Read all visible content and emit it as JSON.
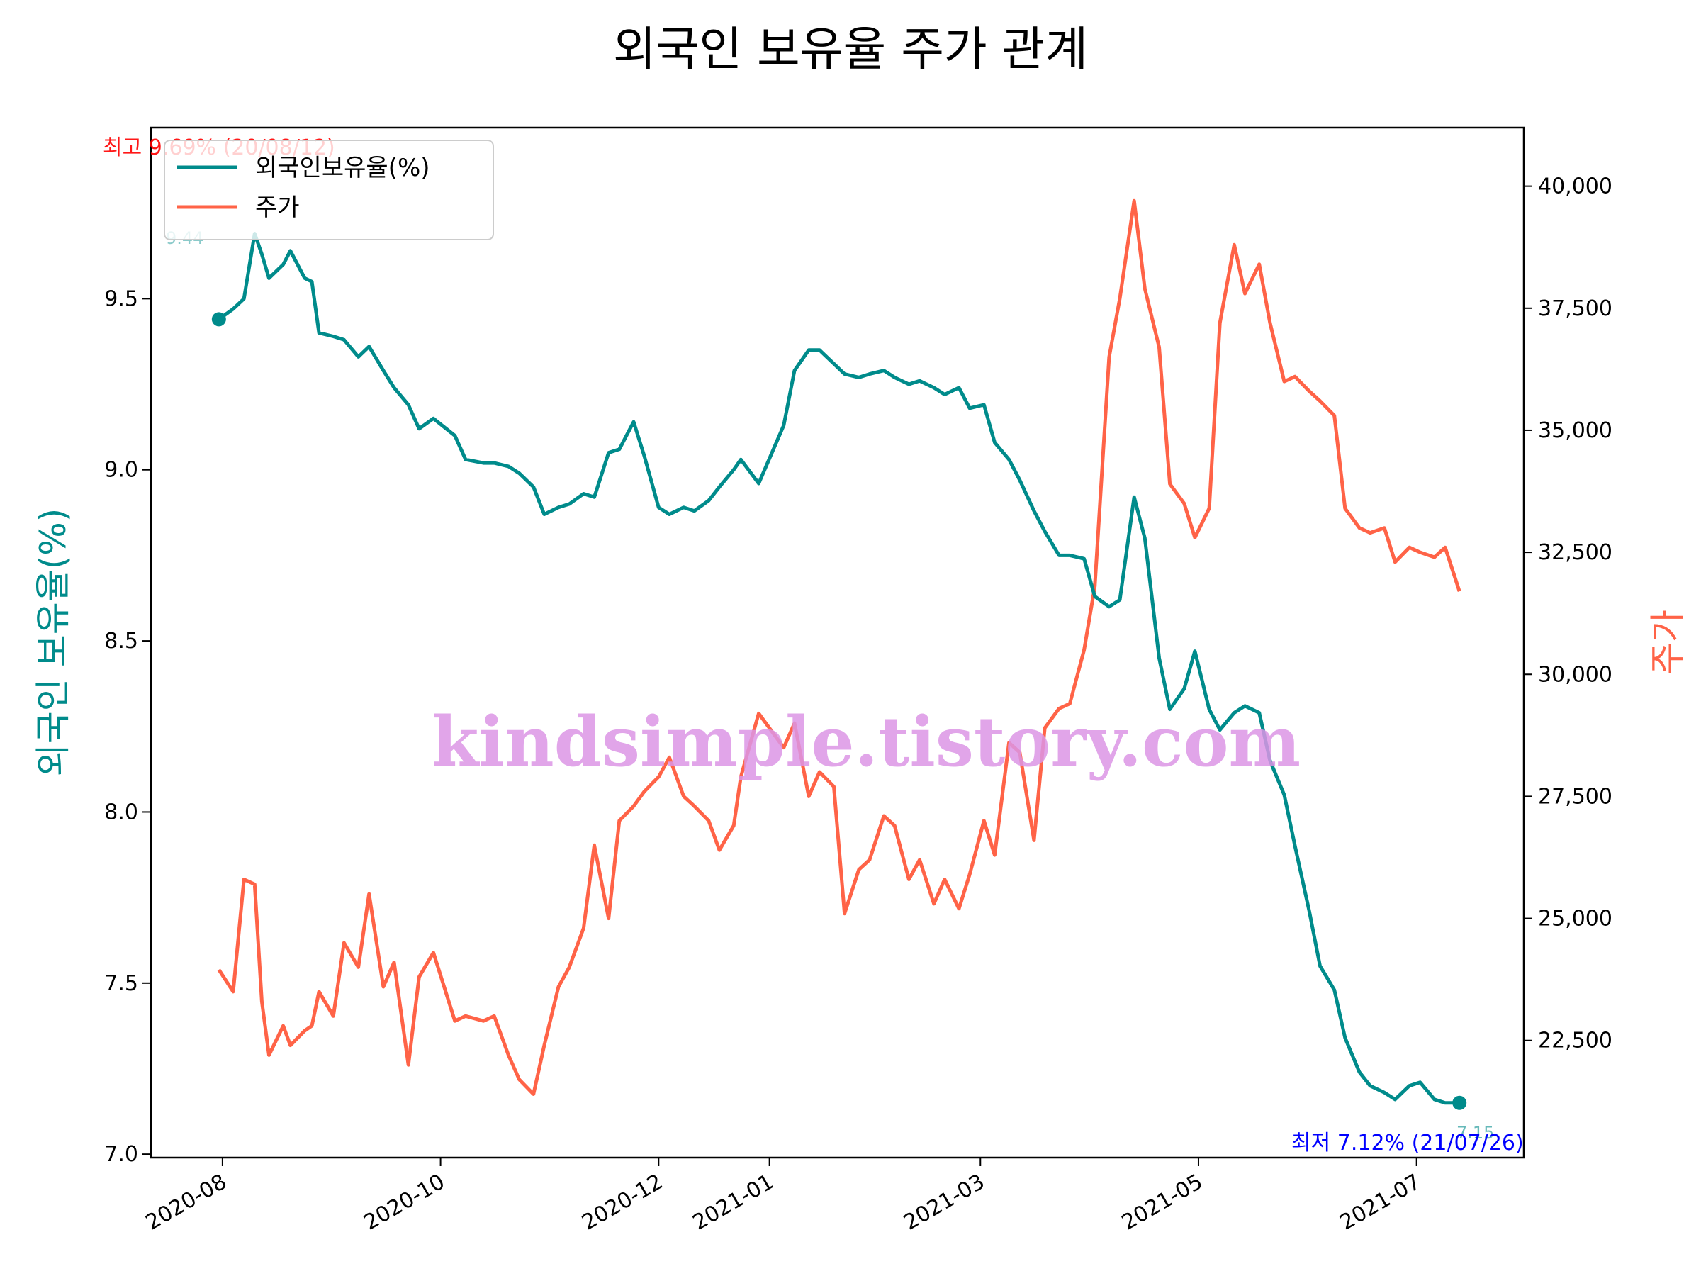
{
  "chart_data": {
    "type": "line",
    "title": "외국인 보유율 주가 관계",
    "ylabel_left": "외국인 보유율(%)",
    "ylabel_right": "주가",
    "x_ticks": [
      "2020-08",
      "2020-10",
      "2020-12",
      "2021-01",
      "2021-03",
      "2021-05",
      "2021-07"
    ],
    "y_left_ticks": [
      "7.0",
      "7.5",
      "8.0",
      "8.5",
      "9.0",
      "9.5"
    ],
    "y_right_ticks": [
      "22,500",
      "25,000",
      "27,500",
      "30,000",
      "32,500",
      "35,000",
      "37,500",
      "40,000"
    ],
    "ylim_left": [
      6.99,
      10.0
    ],
    "ylim_right": [
      20100,
      41200
    ],
    "xlim": [
      "2020-07-12",
      "2021-07-31"
    ],
    "legend_position": "upper-left",
    "grid": false,
    "colors": {
      "foreign_ratio": "#008b8b",
      "price": "#ff6347",
      "max_annot": "#ff0000",
      "min_annot": "#0000ff"
    },
    "series": [
      {
        "name": "외국인보유율(%)",
        "axis": "left",
        "x": [
          "2020-07-31",
          "2020-08-04",
          "2020-08-07",
          "2020-08-10",
          "2020-08-12",
          "2020-08-14",
          "2020-08-18",
          "2020-08-20",
          "2020-08-24",
          "2020-08-26",
          "2020-08-28",
          "2020-09-01",
          "2020-09-04",
          "2020-09-08",
          "2020-09-11",
          "2020-09-15",
          "2020-09-18",
          "2020-09-22",
          "2020-09-25",
          "2020-09-29",
          "2020-10-05",
          "2020-10-08",
          "2020-10-13",
          "2020-10-16",
          "2020-10-20",
          "2020-10-23",
          "2020-10-27",
          "2020-10-30",
          "2020-11-03",
          "2020-11-06",
          "2020-11-10",
          "2020-11-13",
          "2020-11-17",
          "2020-11-20",
          "2020-11-24",
          "2020-11-27",
          "2020-12-01",
          "2020-12-04",
          "2020-12-08",
          "2020-12-11",
          "2020-12-15",
          "2020-12-18",
          "2020-12-22",
          "2020-12-24",
          "2020-12-29",
          "2021-01-05",
          "2021-01-08",
          "2021-01-12",
          "2021-01-15",
          "2021-01-19",
          "2021-01-22",
          "2021-01-26",
          "2021-01-29",
          "2021-02-02",
          "2021-02-05",
          "2021-02-09",
          "2021-02-12",
          "2021-02-16",
          "2021-02-19",
          "2021-02-23",
          "2021-02-26",
          "2021-03-02",
          "2021-03-05",
          "2021-03-09",
          "2021-03-12",
          "2021-03-16",
          "2021-03-19",
          "2021-03-23",
          "2021-03-26",
          "2021-03-30",
          "2021-04-02",
          "2021-04-06",
          "2021-04-09",
          "2021-04-13",
          "2021-04-16",
          "2021-04-20",
          "2021-04-23",
          "2021-04-27",
          "2021-04-30",
          "2021-05-04",
          "2021-05-07",
          "2021-05-11",
          "2021-05-14",
          "2021-05-18",
          "2021-05-21",
          "2021-05-25",
          "2021-05-28",
          "2021-06-01",
          "2021-06-04",
          "2021-06-08",
          "2021-06-11",
          "2021-06-15",
          "2021-06-18",
          "2021-06-22",
          "2021-06-25",
          "2021-06-29",
          "2021-07-02",
          "2021-07-06",
          "2021-07-09",
          "2021-07-13"
        ],
        "values": [
          9.44,
          9.47,
          9.5,
          9.69,
          9.63,
          9.56,
          9.6,
          9.64,
          9.56,
          9.55,
          9.4,
          9.39,
          9.38,
          9.33,
          9.36,
          9.29,
          9.24,
          9.19,
          9.12,
          9.15,
          9.1,
          9.03,
          9.02,
          9.02,
          9.01,
          8.99,
          8.95,
          8.87,
          8.89,
          8.9,
          8.93,
          8.92,
          9.05,
          9.06,
          9.14,
          9.04,
          8.89,
          8.87,
          8.89,
          8.88,
          8.91,
          8.95,
          9.0,
          9.03,
          8.96,
          9.13,
          9.29,
          9.35,
          9.35,
          9.31,
          9.28,
          9.27,
          9.28,
          9.29,
          9.27,
          9.25,
          9.26,
          9.24,
          9.22,
          9.24,
          9.18,
          9.19,
          9.08,
          9.03,
          8.97,
          8.88,
          8.82,
          8.75,
          8.75,
          8.74,
          8.63,
          8.6,
          8.62,
          8.92,
          8.8,
          8.45,
          8.3,
          8.36,
          8.47,
          8.3,
          8.24,
          8.29,
          8.31,
          8.29,
          8.15,
          8.05,
          7.9,
          7.71,
          7.55,
          7.48,
          7.34,
          7.24,
          7.2,
          7.18,
          7.16,
          7.2,
          7.21,
          7.16,
          7.15,
          7.15
        ]
      },
      {
        "name": "주가",
        "axis": "right",
        "x": [
          "2020-07-31",
          "2020-08-04",
          "2020-08-07",
          "2020-08-10",
          "2020-08-12",
          "2020-08-14",
          "2020-08-18",
          "2020-08-20",
          "2020-08-24",
          "2020-08-26",
          "2020-08-28",
          "2020-09-01",
          "2020-09-04",
          "2020-09-08",
          "2020-09-11",
          "2020-09-15",
          "2020-09-18",
          "2020-09-22",
          "2020-09-25",
          "2020-09-29",
          "2020-10-05",
          "2020-10-08",
          "2020-10-13",
          "2020-10-16",
          "2020-10-20",
          "2020-10-23",
          "2020-10-27",
          "2020-10-30",
          "2020-11-03",
          "2020-11-06",
          "2020-11-10",
          "2020-11-13",
          "2020-11-17",
          "2020-11-20",
          "2020-11-24",
          "2020-11-27",
          "2020-12-01",
          "2020-12-04",
          "2020-12-08",
          "2020-12-11",
          "2020-12-15",
          "2020-12-18",
          "2020-12-22",
          "2020-12-24",
          "2020-12-29",
          "2021-01-05",
          "2021-01-08",
          "2021-01-12",
          "2021-01-15",
          "2021-01-19",
          "2021-01-22",
          "2021-01-26",
          "2021-01-29",
          "2021-02-02",
          "2021-02-05",
          "2021-02-09",
          "2021-02-12",
          "2021-02-16",
          "2021-02-19",
          "2021-02-23",
          "2021-02-26",
          "2021-03-02",
          "2021-03-05",
          "2021-03-09",
          "2021-03-12",
          "2021-03-16",
          "2021-03-19",
          "2021-03-23",
          "2021-03-26",
          "2021-03-30",
          "2021-04-02",
          "2021-04-06",
          "2021-04-09",
          "2021-04-13",
          "2021-04-16",
          "2021-04-20",
          "2021-04-23",
          "2021-04-27",
          "2021-04-30",
          "2021-05-04",
          "2021-05-07",
          "2021-05-11",
          "2021-05-14",
          "2021-05-18",
          "2021-05-21",
          "2021-05-25",
          "2021-05-28",
          "2021-06-01",
          "2021-06-04",
          "2021-06-08",
          "2021-06-11",
          "2021-06-15",
          "2021-06-18",
          "2021-06-22",
          "2021-06-25",
          "2021-06-29",
          "2021-07-02",
          "2021-07-06",
          "2021-07-09",
          "2021-07-13"
        ],
        "values": [
          23950,
          23500,
          25800,
          25700,
          23300,
          22200,
          22800,
          22400,
          22700,
          22800,
          23500,
          23000,
          24500,
          24000,
          25500,
          23600,
          24100,
          22000,
          23800,
          24300,
          22900,
          23000,
          22900,
          23000,
          22200,
          21700,
          21400,
          22400,
          23600,
          24000,
          24800,
          26500,
          25000,
          27000,
          27300,
          27600,
          27900,
          28300,
          27500,
          27300,
          27000,
          26400,
          26900,
          27900,
          29200,
          28500,
          29000,
          27500,
          28000,
          27700,
          25100,
          26000,
          26200,
          27100,
          26900,
          25800,
          26200,
          25300,
          25800,
          25200,
          25900,
          27000,
          26300,
          28600,
          28400,
          26600,
          28900,
          29300,
          29400,
          30500,
          31800,
          36500,
          37700,
          39700,
          37900,
          36700,
          33900,
          33500,
          32800,
          33400,
          37200,
          38800,
          37800,
          38400,
          37200,
          36000,
          36100,
          35800,
          35600,
          35300,
          33400,
          33000,
          32900,
          33000,
          32300,
          32600,
          32500,
          32400,
          32600,
          31700
        ]
      }
    ],
    "annotations": {
      "max_label": "최고 9.69% (20/08/12)",
      "min_label": "최저 7.12% (21/07/26)",
      "start_value_label": "9.44",
      "end_value_label": "7.15"
    }
  },
  "watermark": "kindsimple.tistory.com"
}
